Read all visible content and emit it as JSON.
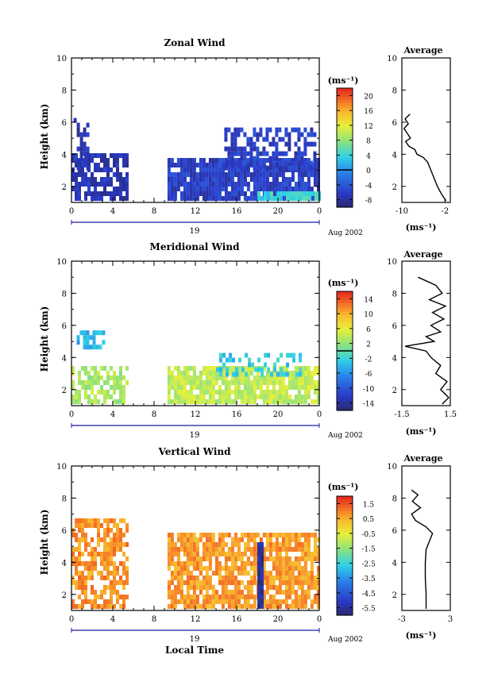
{
  "chart_data": [
    {
      "type": "heatmap",
      "title": "Zonal Wind",
      "xlabel": "",
      "ylabel": "Height (km)",
      "xlim": [
        0,
        24
      ],
      "ylim": [
        1,
        10
      ],
      "xticks": [
        "0",
        "4",
        "8",
        "12",
        "16",
        "20",
        "0"
      ],
      "xtick_values": [
        0,
        4,
        8,
        12,
        16,
        20,
        24
      ],
      "yticks": [
        "2",
        "4",
        "6",
        "8",
        "10"
      ],
      "date_label": "Aug 2002",
      "day_label": "19",
      "colorbar": {
        "unit": "(ms⁻¹)",
        "ticks": [
          "20",
          "16",
          "12",
          "8",
          "4",
          "0",
          "-4",
          "-8"
        ],
        "range": [
          -10,
          22
        ],
        "zero_line_at": 0
      },
      "data_blocks": [
        {
          "x": [
            0,
            5.3
          ],
          "y": [
            1.1,
            3.9
          ],
          "value": -7,
          "coverage": 0.7
        },
        {
          "x": [
            0.2,
            1.5
          ],
          "y": [
            3.0,
            6.0
          ],
          "value": -7,
          "coverage": 0.4
        },
        {
          "x": [
            9.3,
            24
          ],
          "y": [
            1.1,
            3.6
          ],
          "value": -6,
          "coverage": 0.92
        },
        {
          "x": [
            14.8,
            23.5
          ],
          "y": [
            3.0,
            5.6
          ],
          "value": -6,
          "coverage": 0.55
        },
        {
          "x": [
            18,
            24
          ],
          "y": [
            1.1,
            1.6
          ],
          "value": 4,
          "coverage": 0.9
        }
      ],
      "average": {
        "title": "Average",
        "xlabel": "(ms⁻¹)",
        "xlim": [
          -10,
          -1
        ],
        "xticks": [
          "-10",
          "-2"
        ],
        "yticks": [
          "2",
          "4",
          "6",
          "8",
          "10"
        ],
        "height": [
          1.1,
          1.5,
          2.0,
          2.5,
          3.0,
          3.5,
          3.8,
          4.0,
          4.3,
          4.5,
          4.8,
          5.0,
          5.3,
          5.6,
          5.9,
          6.2,
          6.5
        ],
        "value": [
          -1.8,
          -2.6,
          -3.4,
          -4.0,
          -4.6,
          -5.2,
          -6.0,
          -7.2,
          -7.6,
          -8.7,
          -9.3,
          -8.4,
          -9.0,
          -9.6,
          -8.8,
          -9.4,
          -8.5
        ]
      }
    },
    {
      "type": "heatmap",
      "title": "Meridional Wind",
      "xlabel": "",
      "ylabel": "Height (km)",
      "xlim": [
        0,
        24
      ],
      "ylim": [
        1,
        10
      ],
      "xticks": [
        "0",
        "4",
        "8",
        "12",
        "16",
        "20",
        "0"
      ],
      "xtick_values": [
        0,
        4,
        8,
        12,
        16,
        20,
        24
      ],
      "yticks": [
        "2",
        "4",
        "6",
        "8",
        "10"
      ],
      "date_label": "Aug 2002",
      "day_label": "19",
      "colorbar": {
        "unit": "(ms⁻¹)",
        "ticks": [
          "14",
          "10",
          "6",
          "2",
          "-2",
          "-6",
          "-10",
          "-14"
        ],
        "range": [
          -16,
          16
        ],
        "zero_line_at": 0
      },
      "data_blocks": [
        {
          "x": [
            0,
            5.3
          ],
          "y": [
            1.1,
            3.4
          ],
          "value": 3,
          "coverage": 0.6
        },
        {
          "x": [
            0.5,
            3.2
          ],
          "y": [
            4.5,
            5.4
          ],
          "value": -4,
          "coverage": 0.4
        },
        {
          "x": [
            9.3,
            24
          ],
          "y": [
            1.1,
            3.3
          ],
          "value": 4,
          "coverage": 0.85
        },
        {
          "x": [
            14,
            22
          ],
          "y": [
            2.8,
            4.2
          ],
          "value": -3,
          "coverage": 0.4
        }
      ],
      "average": {
        "title": "Average",
        "xlabel": "(ms⁻¹)",
        "xlim": [
          -1.5,
          1.5
        ],
        "xticks": [
          "-1.5",
          "1.5"
        ],
        "yticks": [
          "2",
          "4",
          "6",
          "8",
          "10"
        ],
        "height": [
          1.1,
          1.5,
          2.0,
          2.5,
          3.0,
          3.5,
          4.0,
          4.4,
          4.7,
          5.0,
          5.3,
          5.6,
          6.0,
          6.4,
          6.8,
          7.2,
          7.6,
          8.0,
          8.5,
          9.0
        ],
        "value": [
          1.0,
          1.4,
          0.9,
          1.3,
          0.6,
          0.9,
          0.3,
          0.0,
          -1.3,
          0.5,
          0.0,
          0.9,
          0.3,
          1.1,
          0.4,
          1.2,
          0.2,
          1.0,
          0.6,
          -0.5
        ]
      }
    },
    {
      "type": "heatmap",
      "title": "Vertical Wind",
      "xlabel": "Local Time",
      "ylabel": "Height (km)",
      "xlim": [
        0,
        24
      ],
      "ylim": [
        1,
        10
      ],
      "xticks": [
        "0",
        "4",
        "8",
        "12",
        "16",
        "20",
        "0"
      ],
      "xtick_values": [
        0,
        4,
        8,
        12,
        16,
        20,
        24
      ],
      "yticks": [
        "2",
        "4",
        "6",
        "8",
        "10"
      ],
      "date_label": "Aug 2002",
      "day_label": "19",
      "colorbar": {
        "unit": "(ms⁻¹)",
        "ticks": [
          "1.5",
          "0.5",
          "-0.5",
          "-1.5",
          "-2.5",
          "-3.5",
          "-4.5",
          "-5.5"
        ],
        "range": [
          -6,
          2
        ]
      },
      "data_blocks": [
        {
          "x": [
            0,
            5.3
          ],
          "y": [
            1.1,
            6.6
          ],
          "value": 0.8,
          "coverage": 0.65
        },
        {
          "x": [
            9.3,
            24
          ],
          "y": [
            1.1,
            5.8
          ],
          "value": 0.7,
          "coverage": 0.8
        },
        {
          "x": [
            18.0,
            18.6
          ],
          "y": [
            1.1,
            5.2
          ],
          "value": -5.5,
          "coverage": 1.0
        }
      ],
      "average": {
        "title": "Average",
        "xlabel": "(ms⁻¹)",
        "xlim": [
          -3,
          3
        ],
        "xticks": [
          "-3",
          "3"
        ],
        "yticks": [
          "2",
          "4",
          "6",
          "8",
          "10"
        ],
        "height": [
          1.1,
          2.0,
          3.0,
          4.0,
          4.8,
          5.3,
          5.8,
          6.2,
          6.6,
          7.0,
          7.4,
          7.8,
          8.2,
          8.5
        ],
        "value": [
          0.0,
          0.0,
          -0.1,
          -0.1,
          0.0,
          0.4,
          0.8,
          0.0,
          -1.3,
          -1.8,
          -0.7,
          -1.7,
          -1.0,
          -1.8
        ]
      }
    }
  ]
}
